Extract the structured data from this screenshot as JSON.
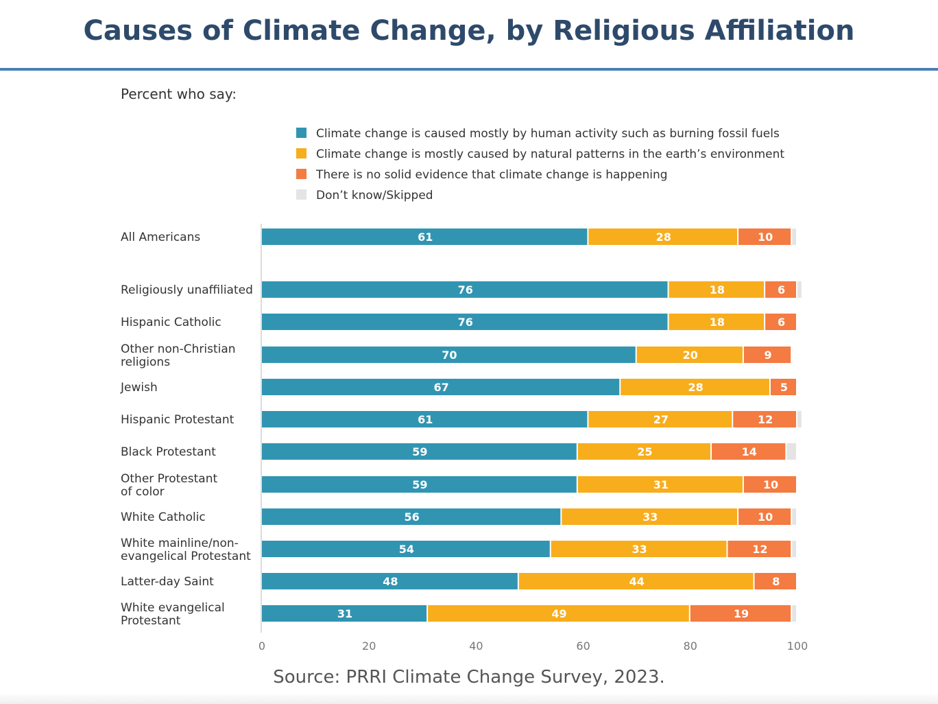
{
  "chart_data": {
    "type": "bar",
    "orientation": "horizontal",
    "stacked": true,
    "title": "Causes of Climate Change, by Religious Affiliation",
    "subtitle": "Percent who say:",
    "source": "Source: PRRI Climate Change Survey, 2023.",
    "categories": [
      [
        "All Americans"
      ],
      [
        "Religiously unaffiliated"
      ],
      [
        "Hispanic Catholic"
      ],
      [
        "Other non-Christian",
        "religions"
      ],
      [
        "Jewish"
      ],
      [
        "Hispanic Protestant"
      ],
      [
        "Black Protestant"
      ],
      [
        "Other Protestant",
        "of color"
      ],
      [
        "White Catholic"
      ],
      [
        "White mainline/non-",
        "evangelical Protestant"
      ],
      [
        "Latter-day Saint"
      ],
      [
        "White evangelical",
        "Protestant"
      ]
    ],
    "series": [
      {
        "name": "Climate change is caused mostly by human activity such as burning fossil fuels",
        "color": "#3195b2",
        "values": [
          61,
          76,
          76,
          70,
          67,
          61,
          59,
          59,
          56,
          54,
          48,
          31
        ]
      },
      {
        "name": "Climate change is mostly caused by natural patterns in the earth’s environment",
        "color": "#f8ad1d",
        "values": [
          28,
          18,
          18,
          20,
          28,
          27,
          25,
          31,
          33,
          33,
          44,
          49
        ]
      },
      {
        "name": "There is no solid evidence that climate change is happening",
        "color": "#f47b41",
        "values": [
          10,
          6,
          6,
          9,
          5,
          12,
          14,
          10,
          10,
          12,
          8,
          19
        ]
      },
      {
        "name": "Don’t know/Skipped",
        "color": "#e4e4e4",
        "values": [
          1,
          1,
          0,
          0,
          0,
          1,
          2,
          0,
          1,
          1,
          0,
          1
        ]
      }
    ],
    "xlim": [
      0,
      100
    ],
    "xticks": [
      "0",
      "20",
      "40",
      "60",
      "80",
      "100"
    ],
    "grid": false,
    "legend": "top"
  }
}
